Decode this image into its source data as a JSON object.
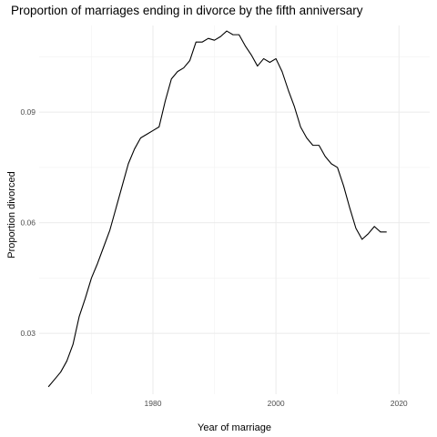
{
  "chart_data": {
    "type": "line",
    "title": "Proportion of marriages ending in divorce by the fifth anniversary",
    "xlabel": "Year of marriage",
    "ylabel": "Proportion divorced",
    "xlim": [
      1961.5,
      2025
    ],
    "ylim": [
      0.0135,
      0.1135
    ],
    "x_ticks": [
      1980,
      2000,
      2020
    ],
    "x_minor_ticks": [
      1970,
      1990,
      2010
    ],
    "y_ticks": [
      0.03,
      0.06,
      0.09
    ],
    "y_tick_labels": [
      "0.03",
      "0.06",
      "0.09"
    ],
    "y_minor_ticks": [
      0.045,
      0.075,
      0.105
    ],
    "grid": true,
    "legend": "none",
    "series": [
      {
        "x": [
          1963,
          1964,
          1965,
          1966,
          1967,
          1968,
          1969,
          1970,
          1971,
          1972,
          1973,
          1974,
          1975,
          1976,
          1977,
          1978,
          1979,
          1980,
          1981,
          1982,
          1983,
          1984,
          1985,
          1986,
          1987,
          1988,
          1989,
          1990,
          1991,
          1992,
          1993,
          1994,
          1995,
          1996,
          1997,
          1998,
          1999,
          2000,
          2001,
          2002,
          2003,
          2004,
          2005,
          2006,
          2007,
          2008,
          2009,
          2010,
          2011,
          2012,
          2013,
          2014,
          2015,
          2016,
          2017,
          2018
        ],
        "values": [
          0.0155,
          0.0175,
          0.0195,
          0.0225,
          0.027,
          0.0345,
          0.0395,
          0.045,
          0.049,
          0.0535,
          0.058,
          0.064,
          0.07,
          0.076,
          0.08,
          0.083,
          0.084,
          0.085,
          0.086,
          0.093,
          0.099,
          0.101,
          0.102,
          0.104,
          0.109,
          0.109,
          0.11,
          0.1095,
          0.1105,
          0.112,
          0.111,
          0.111,
          0.108,
          0.1055,
          0.1025,
          0.1045,
          0.1035,
          0.1045,
          0.101,
          0.096,
          0.0915,
          0.086,
          0.083,
          0.081,
          0.081,
          0.078,
          0.076,
          0.075,
          0.07,
          0.064,
          0.0585,
          0.0555,
          0.057,
          0.059,
          0.0575,
          0.0575
        ]
      }
    ]
  }
}
